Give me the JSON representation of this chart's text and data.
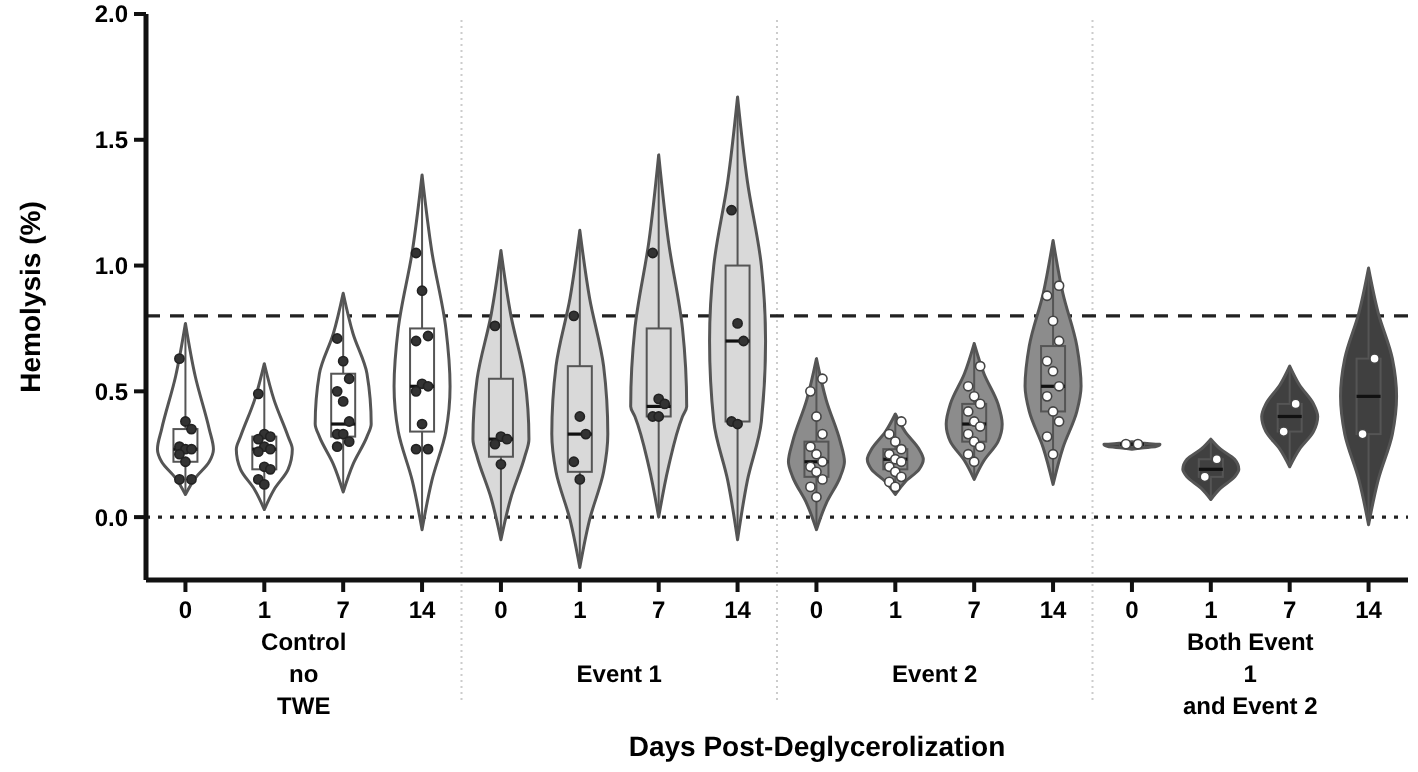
{
  "chart_data": {
    "type": "box",
    "xlabel": "Days Post-Deglycerolization",
    "ylabel": "Hemolysis (%)",
    "categories": [
      "0",
      "1",
      "7",
      "14",
      "0",
      "1",
      "7",
      "14",
      "0",
      "1",
      "7",
      "14",
      "0",
      "1",
      "7",
      "14"
    ],
    "colors": [
      "#ffffff",
      "#ffffff",
      "#ffffff",
      "#ffffff",
      "#d9d9d9",
      "#d9d9d9",
      "#d9d9d9",
      "#d9d9d9",
      "#8c8c8c",
      "#8c8c8c",
      "#8c8c8c",
      "#8c8c8c",
      "#404040",
      "#404040",
      "#404040",
      "#404040"
    ],
    "boxes": [
      {
        "low": 0.09,
        "q1": 0.22,
        "median": 0.27,
        "q3": 0.35,
        "high": 0.77
      },
      {
        "low": 0.03,
        "q1": 0.19,
        "median": 0.27,
        "q3": 0.32,
        "high": 0.61
      },
      {
        "low": 0.1,
        "q1": 0.32,
        "median": 0.37,
        "q3": 0.57,
        "high": 0.89
      },
      {
        "low": -0.05,
        "q1": 0.34,
        "median": 0.52,
        "q3": 0.75,
        "high": 1.36
      },
      {
        "low": -0.09,
        "q1": 0.24,
        "median": 0.31,
        "q3": 0.55,
        "high": 1.06
      },
      {
        "low": -0.2,
        "q1": 0.18,
        "median": 0.33,
        "q3": 0.6,
        "high": 1.14
      },
      {
        "low": 0.0,
        "q1": 0.4,
        "median": 0.44,
        "q3": 0.75,
        "high": 1.44
      },
      {
        "low": -0.09,
        "q1": 0.38,
        "median": 0.7,
        "q3": 1.0,
        "high": 1.67
      },
      {
        "low": -0.05,
        "q1": 0.16,
        "median": 0.22,
        "q3": 0.3,
        "high": 0.63
      },
      {
        "low": 0.09,
        "q1": 0.19,
        "median": 0.23,
        "q3": 0.27,
        "high": 0.41
      },
      {
        "low": 0.15,
        "q1": 0.3,
        "median": 0.37,
        "q3": 0.45,
        "high": 0.69
      },
      {
        "low": 0.13,
        "q1": 0.42,
        "median": 0.52,
        "q3": 0.68,
        "high": 1.1
      },
      {
        "low": 0.27,
        "q1": 0.28,
        "median": 0.29,
        "q3": 0.29,
        "high": 0.3
      },
      {
        "low": 0.07,
        "q1": 0.16,
        "median": 0.19,
        "q3": 0.23,
        "high": 0.31
      },
      {
        "low": 0.2,
        "q1": 0.34,
        "median": 0.4,
        "q3": 0.45,
        "high": 0.6
      },
      {
        "low": -0.03,
        "q1": 0.33,
        "median": 0.48,
        "q3": 0.63,
        "high": 0.99
      }
    ],
    "series": [
      {
        "type": "scatter",
        "color": "#333333",
        "values": [
          0.63,
          0.49,
          0.71,
          1.05,
          0.76,
          0.8,
          1.05,
          1.22,
          null,
          null,
          null,
          null,
          null,
          null,
          null,
          null
        ]
      },
      {
        "type": "scatter",
        "color": "#333333",
        "values": [
          0.38,
          0.33,
          0.62,
          0.9,
          0.32,
          0.4,
          0.47,
          0.77,
          null,
          null,
          null,
          null,
          null,
          null,
          null,
          null
        ]
      },
      {
        "type": "scatter",
        "color": "#333333",
        "values": [
          0.35,
          0.32,
          0.55,
          0.72,
          0.31,
          0.33,
          0.45,
          0.7,
          null,
          null,
          null,
          null,
          null,
          null,
          null,
          null
        ]
      },
      {
        "type": "scatter",
        "color": "#333333",
        "values": [
          0.28,
          0.31,
          0.5,
          0.7,
          0.29,
          0.22,
          0.4,
          0.38,
          null,
          null,
          null,
          null,
          null,
          null,
          null,
          null
        ]
      },
      {
        "type": "scatter",
        "color": "#333333",
        "values": [
          0.27,
          0.28,
          0.46,
          0.53,
          0.21,
          0.15,
          0.4,
          0.37,
          null,
          null,
          null,
          null,
          null,
          null,
          null,
          null
        ]
      },
      {
        "type": "scatter",
        "color": "#333333",
        "values": [
          0.27,
          0.27,
          0.38,
          0.52,
          null,
          null,
          null,
          null,
          null,
          null,
          null,
          null,
          null,
          null,
          null,
          null
        ]
      },
      {
        "type": "scatter",
        "color": "#333333",
        "values": [
          0.25,
          0.26,
          0.33,
          0.5,
          null,
          null,
          null,
          null,
          null,
          null,
          null,
          null,
          null,
          null,
          null,
          null
        ]
      },
      {
        "type": "scatter",
        "color": "#333333",
        "values": [
          0.22,
          0.2,
          0.33,
          0.37,
          null,
          null,
          null,
          null,
          null,
          null,
          null,
          null,
          null,
          null,
          null,
          null
        ]
      },
      {
        "type": "scatter",
        "color": "#333333",
        "values": [
          0.15,
          0.19,
          0.3,
          0.27,
          null,
          null,
          null,
          null,
          null,
          null,
          null,
          null,
          null,
          null,
          null,
          null
        ]
      },
      {
        "type": "scatter",
        "color": "#333333",
        "values": [
          0.15,
          0.15,
          0.28,
          0.27,
          null,
          null,
          null,
          null,
          null,
          null,
          null,
          null,
          null,
          null,
          null,
          null
        ]
      },
      {
        "type": "scatter",
        "color": "#333333",
        "values": [
          null,
          0.13,
          null,
          null,
          null,
          null,
          null,
          null,
          null,
          null,
          null,
          null,
          null,
          null,
          null,
          null
        ]
      },
      {
        "type": "scatter",
        "color": "#ffffff",
        "values": [
          null,
          null,
          null,
          null,
          null,
          null,
          null,
          null,
          0.55,
          0.38,
          0.6,
          0.92,
          0.29,
          0.23,
          0.45,
          0.63
        ]
      },
      {
        "type": "scatter",
        "color": "#ffffff",
        "values": [
          null,
          null,
          null,
          null,
          null,
          null,
          null,
          null,
          0.5,
          0.33,
          0.52,
          0.88,
          0.29,
          0.16,
          0.34,
          0.33
        ]
      },
      {
        "type": "scatter",
        "color": "#ffffff",
        "values": [
          null,
          null,
          null,
          null,
          null,
          null,
          null,
          null,
          0.4,
          0.3,
          0.48,
          0.78,
          null,
          null,
          null,
          null
        ]
      },
      {
        "type": "scatter",
        "color": "#ffffff",
        "values": [
          null,
          null,
          null,
          null,
          null,
          null,
          null,
          null,
          0.33,
          0.27,
          0.45,
          0.7,
          null,
          null,
          null,
          null
        ]
      },
      {
        "type": "scatter",
        "color": "#ffffff",
        "values": [
          null,
          null,
          null,
          null,
          null,
          null,
          null,
          null,
          0.28,
          0.25,
          0.42,
          0.62,
          null,
          null,
          null,
          null
        ]
      },
      {
        "type": "scatter",
        "color": "#ffffff",
        "values": [
          null,
          null,
          null,
          null,
          null,
          null,
          null,
          null,
          0.25,
          0.23,
          0.38,
          0.58,
          null,
          null,
          null,
          null
        ]
      },
      {
        "type": "scatter",
        "color": "#ffffff",
        "values": [
          null,
          null,
          null,
          null,
          null,
          null,
          null,
          null,
          0.22,
          0.22,
          0.36,
          0.52,
          null,
          null,
          null,
          null
        ]
      },
      {
        "type": "scatter",
        "color": "#ffffff",
        "values": [
          null,
          null,
          null,
          null,
          null,
          null,
          null,
          null,
          0.2,
          0.2,
          0.33,
          0.48,
          null,
          null,
          null,
          null
        ]
      },
      {
        "type": "scatter",
        "color": "#ffffff",
        "values": [
          null,
          null,
          null,
          null,
          null,
          null,
          null,
          null,
          0.18,
          0.18,
          0.3,
          0.42,
          null,
          null,
          null,
          null
        ]
      },
      {
        "type": "scatter",
        "color": "#ffffff",
        "values": [
          null,
          null,
          null,
          null,
          null,
          null,
          null,
          null,
          0.15,
          0.16,
          0.28,
          0.38,
          null,
          null,
          null,
          null
        ]
      },
      {
        "type": "scatter",
        "color": "#ffffff",
        "values": [
          null,
          null,
          null,
          null,
          null,
          null,
          null,
          null,
          0.12,
          0.14,
          0.25,
          0.32,
          null,
          null,
          null,
          null
        ]
      },
      {
        "type": "scatter",
        "color": "#ffffff",
        "values": [
          null,
          null,
          null,
          null,
          null,
          null,
          null,
          null,
          0.08,
          0.12,
          0.22,
          0.25,
          null,
          null,
          null,
          null
        ]
      }
    ],
    "ylim": [
      -0.25,
      2.0
    ],
    "yticks": [
      {
        "value": 0,
        "label": "0.0"
      },
      {
        "value": 0.5,
        "label": "0.5"
      },
      {
        "value": 1,
        "label": "1.0"
      },
      {
        "value": 1.5,
        "label": "1.5"
      },
      {
        "value": 2,
        "label": "2.0"
      }
    ],
    "ref_lines": [
      {
        "axis": "y",
        "value": 0.8,
        "line_style": "dashed"
      },
      {
        "axis": "y",
        "value": 0,
        "line_style": "dotted"
      }
    ],
    "annotations": [
      "Control\nno\nTWE",
      "Event 1",
      "Event 2",
      "Both Event\n1\nand Event 2"
    ]
  }
}
